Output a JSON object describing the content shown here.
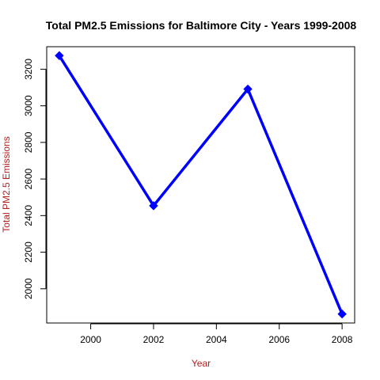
{
  "chart_data": {
    "type": "line",
    "title": "Total PM2.5 Emissions for Baltimore City - Years 1999-2008",
    "xlabel": "Year",
    "ylabel": "Total PM2.5 Emissions",
    "x": [
      1999,
      2002,
      2005,
      2008
    ],
    "series": [
      {
        "values": [
          3274.18,
          2453.92,
          3091.35,
          1862.28
        ]
      }
    ],
    "xlim": [
      1998.6,
      2008.4
    ],
    "ylim": [
      1813,
      3323
    ],
    "xticks": [
      2000,
      2002,
      2004,
      2006,
      2008
    ],
    "xtick_labels": [
      "2000",
      "2002",
      "2004",
      "2006",
      "2008"
    ],
    "yticks": [
      2000,
      2200,
      2400,
      2600,
      2800,
      3000,
      3200
    ],
    "ytick_labels": [
      "2000",
      "2200",
      "2400",
      "2600",
      "2800",
      "3000",
      "3200"
    ],
    "grid": false,
    "legend": "none",
    "colors": {
      "series": "#0000ff",
      "axis_label": "#b22222",
      "text": "#000000",
      "background": "#ffffff"
    }
  }
}
